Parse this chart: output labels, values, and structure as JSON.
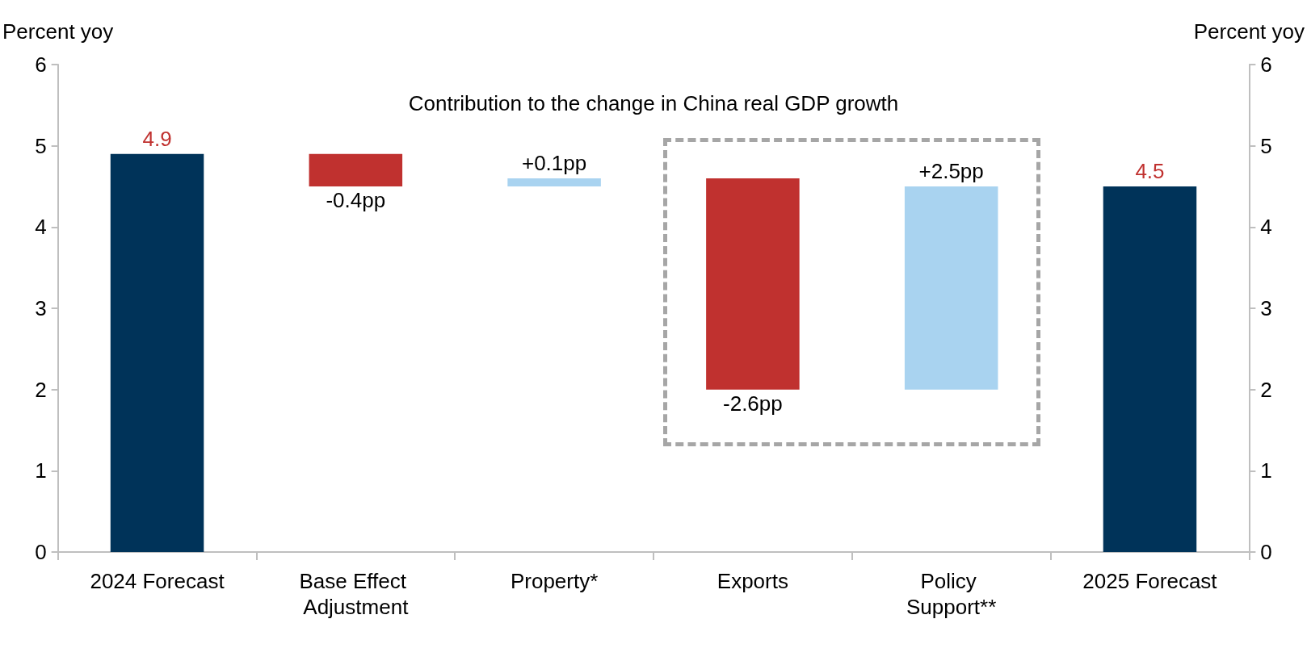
{
  "chart_data": {
    "type": "bar",
    "title": "Contribution to the change in China real GDP growth",
    "ylabel": "Percent yoy",
    "y2label": "Percent yoy",
    "categories": [
      "2024 Forecast",
      "Base Effect Adjustment",
      "Property*",
      "Exports",
      "Policy Support**",
      "2025 Forecast"
    ],
    "values": [
      4.9,
      -0.4,
      0.1,
      -2.6,
      2.5,
      4.5
    ],
    "base": [
      0,
      4.9,
      4.5,
      4.6,
      2.0,
      0
    ],
    "colors": [
      "#003359",
      "#c0312f",
      "#a9d3f0",
      "#c0312f",
      "#a9d3f0",
      "#003359"
    ],
    "value_labels": [
      "4.9",
      "-0.4pp",
      "+0.1pp",
      "-2.6pp",
      "+2.5pp",
      "4.5"
    ],
    "ylim": [
      0,
      6
    ],
    "yticks": [
      0,
      1,
      2,
      3,
      4,
      5,
      6
    ],
    "y2lim": [
      0,
      6
    ],
    "y2ticks": [
      0,
      1,
      2,
      3,
      4,
      5,
      6
    ],
    "grid": false
  }
}
